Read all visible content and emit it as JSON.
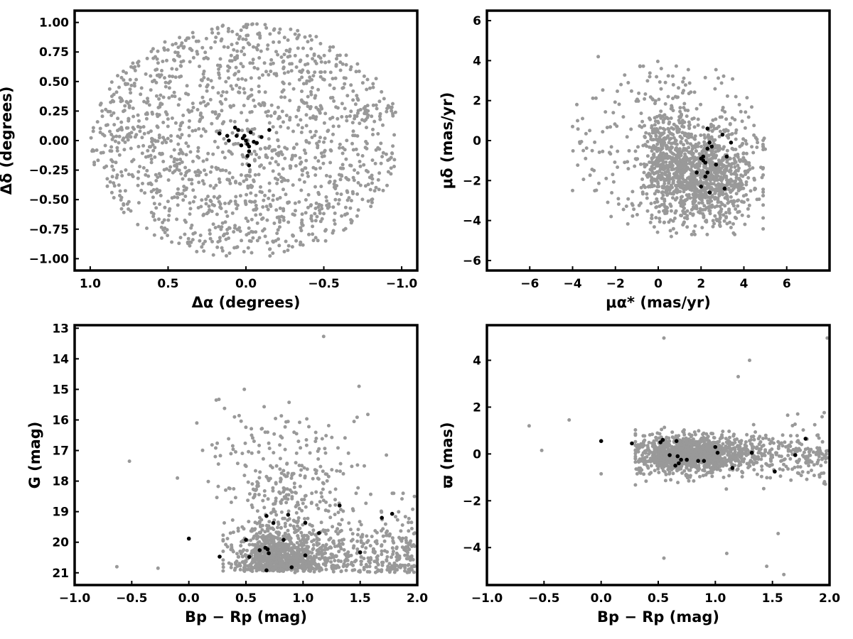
{
  "chart_data": [
    {
      "type": "scatter",
      "xlabel": "Δα (degrees)",
      "ylabel": "Δδ (degrees)",
      "xlim": [
        1.1,
        -1.1
      ],
      "ylim": [
        -1.1,
        1.1
      ],
      "x_inverted": true,
      "xticks": [
        "1.0",
        "0.5",
        "0.0",
        "−0.5",
        "−1.0"
      ],
      "yticks": [
        "−1.00",
        "−0.75",
        "−0.50",
        "−0.25",
        "0.00",
        "0.25",
        "0.50",
        "0.75",
        "1.00"
      ],
      "series": [
        {
          "color": "#999999",
          "distribution": "uniform disk, radius 1.0 deg",
          "count": 1500
        },
        {
          "color": "#000000",
          "points": [
            [
              0.17,
              0.06
            ],
            [
              0.12,
              0.04
            ],
            [
              0.11,
              0.0
            ],
            [
              0.07,
              0.11
            ],
            [
              0.06,
              0.04
            ],
            [
              0.05,
              0.09
            ],
            [
              0.02,
              0.02
            ],
            [
              0.01,
              0.04
            ],
            [
              0.0,
              0.0
            ],
            [
              -0.01,
              -0.03
            ],
            [
              -0.02,
              -0.05
            ],
            [
              -0.02,
              -0.09
            ],
            [
              -0.01,
              -0.13
            ],
            [
              -0.02,
              -0.21
            ],
            [
              -0.03,
              0.07
            ],
            [
              -0.05,
              -0.01
            ],
            [
              -0.07,
              -0.02
            ],
            [
              -0.1,
              0.03
            ],
            [
              -0.15,
              0.09
            ],
            [
              0.03,
              -0.04
            ]
          ]
        }
      ]
    },
    {
      "type": "scatter",
      "xlabel": "μα* (mas/yr)",
      "ylabel": "μδ (mas/yr)",
      "xlim": [
        -8,
        8
      ],
      "ylim": [
        -6.5,
        6.5
      ],
      "xticks": [
        "−6",
        "−4",
        "−2",
        "0",
        "2",
        "4",
        "6"
      ],
      "yticks": [
        "−6",
        "−4",
        "−2",
        "0",
        "2",
        "4",
        "6"
      ],
      "series": [
        {
          "color": "#999999",
          "distribution": "field stars, main clump near (2, -1.5) mas/yr",
          "count": 1500
        },
        {
          "color": "#000000",
          "points": [
            [
              2.3,
              0.6
            ],
            [
              3.0,
              0.3
            ],
            [
              3.4,
              -0.1
            ],
            [
              2.4,
              -0.1
            ],
            [
              2.5,
              -0.3
            ],
            [
              2.3,
              -0.4
            ],
            [
              3.2,
              -0.8
            ],
            [
              2.1,
              -0.8
            ],
            [
              2.0,
              -0.9
            ],
            [
              2.2,
              -1.1
            ],
            [
              2.7,
              -1.2
            ],
            [
              2.3,
              -1.6
            ],
            [
              1.8,
              -1.6
            ],
            [
              2.2,
              -1.8
            ],
            [
              2.0,
              -2.3
            ],
            [
              3.1,
              -2.4
            ],
            [
              2.4,
              -2.6
            ],
            [
              2.1,
              -1.0
            ]
          ]
        }
      ]
    },
    {
      "type": "scatter",
      "xlabel": "Bp − Rp (mag)",
      "ylabel": "G (mag)",
      "xlim": [
        -1.0,
        2.0
      ],
      "ylim": [
        21.4,
        12.9
      ],
      "y_inverted": true,
      "xticks": [
        "−1.0",
        "−0.5",
        "0.0",
        "0.5",
        "1.0",
        "1.5",
        "2.0"
      ],
      "yticks": [
        "13",
        "14",
        "15",
        "16",
        "17",
        "18",
        "19",
        "20",
        "21"
      ],
      "series": [
        {
          "color": "#999999",
          "distribution": "field stars, G 18–21 mag, Bp−Rp 0.3–2.0 mag",
          "count": 1500
        },
        {
          "color": "#000000",
          "points": [
            [
              0.68,
              20.92
            ],
            [
              0.9,
              20.82
            ],
            [
              0.27,
              20.47
            ],
            [
              0.53,
              20.48
            ],
            [
              1.02,
              20.43
            ],
            [
              1.5,
              20.33
            ],
            [
              0.62,
              20.26
            ],
            [
              0.7,
              20.36
            ],
            [
              0.67,
              20.18
            ],
            [
              0.69,
              20.23
            ],
            [
              0.0,
              19.88
            ],
            [
              0.5,
              19.92
            ],
            [
              0.83,
              19.92
            ],
            [
              1.14,
              19.7
            ],
            [
              0.74,
              19.37
            ],
            [
              1.02,
              19.36
            ],
            [
              0.68,
              19.14
            ],
            [
              0.87,
              19.1
            ],
            [
              1.69,
              19.2
            ],
            [
              1.78,
              19.07
            ],
            [
              1.32,
              18.8
            ]
          ]
        }
      ]
    },
    {
      "type": "scatter",
      "xlabel": "Bp − Rp (mag)",
      "ylabel": "ϖ (mas)",
      "xlim": [
        -1.0,
        2.0
      ],
      "ylim": [
        -5.6,
        5.5
      ],
      "xticks": [
        "−1.0",
        "−0.5",
        "0.0",
        "0.5",
        "1.0",
        "1.5",
        "2.0"
      ],
      "yticks": [
        "−4",
        "−2",
        "0",
        "2",
        "4"
      ],
      "series": [
        {
          "color": "#999999",
          "distribution": "field stars clustered near ϖ = 0, Bp−Rp 0.3–2.0 mag",
          "count": 1500
        },
        {
          "color": "#000000",
          "points": [
            [
              0.0,
              0.55
            ],
            [
              0.27,
              0.45
            ],
            [
              0.52,
              0.5
            ],
            [
              0.54,
              0.6
            ],
            [
              0.66,
              0.55
            ],
            [
              0.6,
              -0.05
            ],
            [
              0.67,
              -0.1
            ],
            [
              0.7,
              -0.25
            ],
            [
              0.75,
              -0.25
            ],
            [
              0.65,
              -0.5
            ],
            [
              0.68,
              -0.4
            ],
            [
              0.85,
              -0.3
            ],
            [
              0.9,
              -0.3
            ],
            [
              1.0,
              0.3
            ],
            [
              1.02,
              0.05
            ],
            [
              1.15,
              -0.6
            ],
            [
              1.32,
              0.05
            ],
            [
              1.52,
              -0.75
            ],
            [
              1.7,
              -0.05
            ],
            [
              1.79,
              0.65
            ]
          ]
        }
      ]
    }
  ]
}
